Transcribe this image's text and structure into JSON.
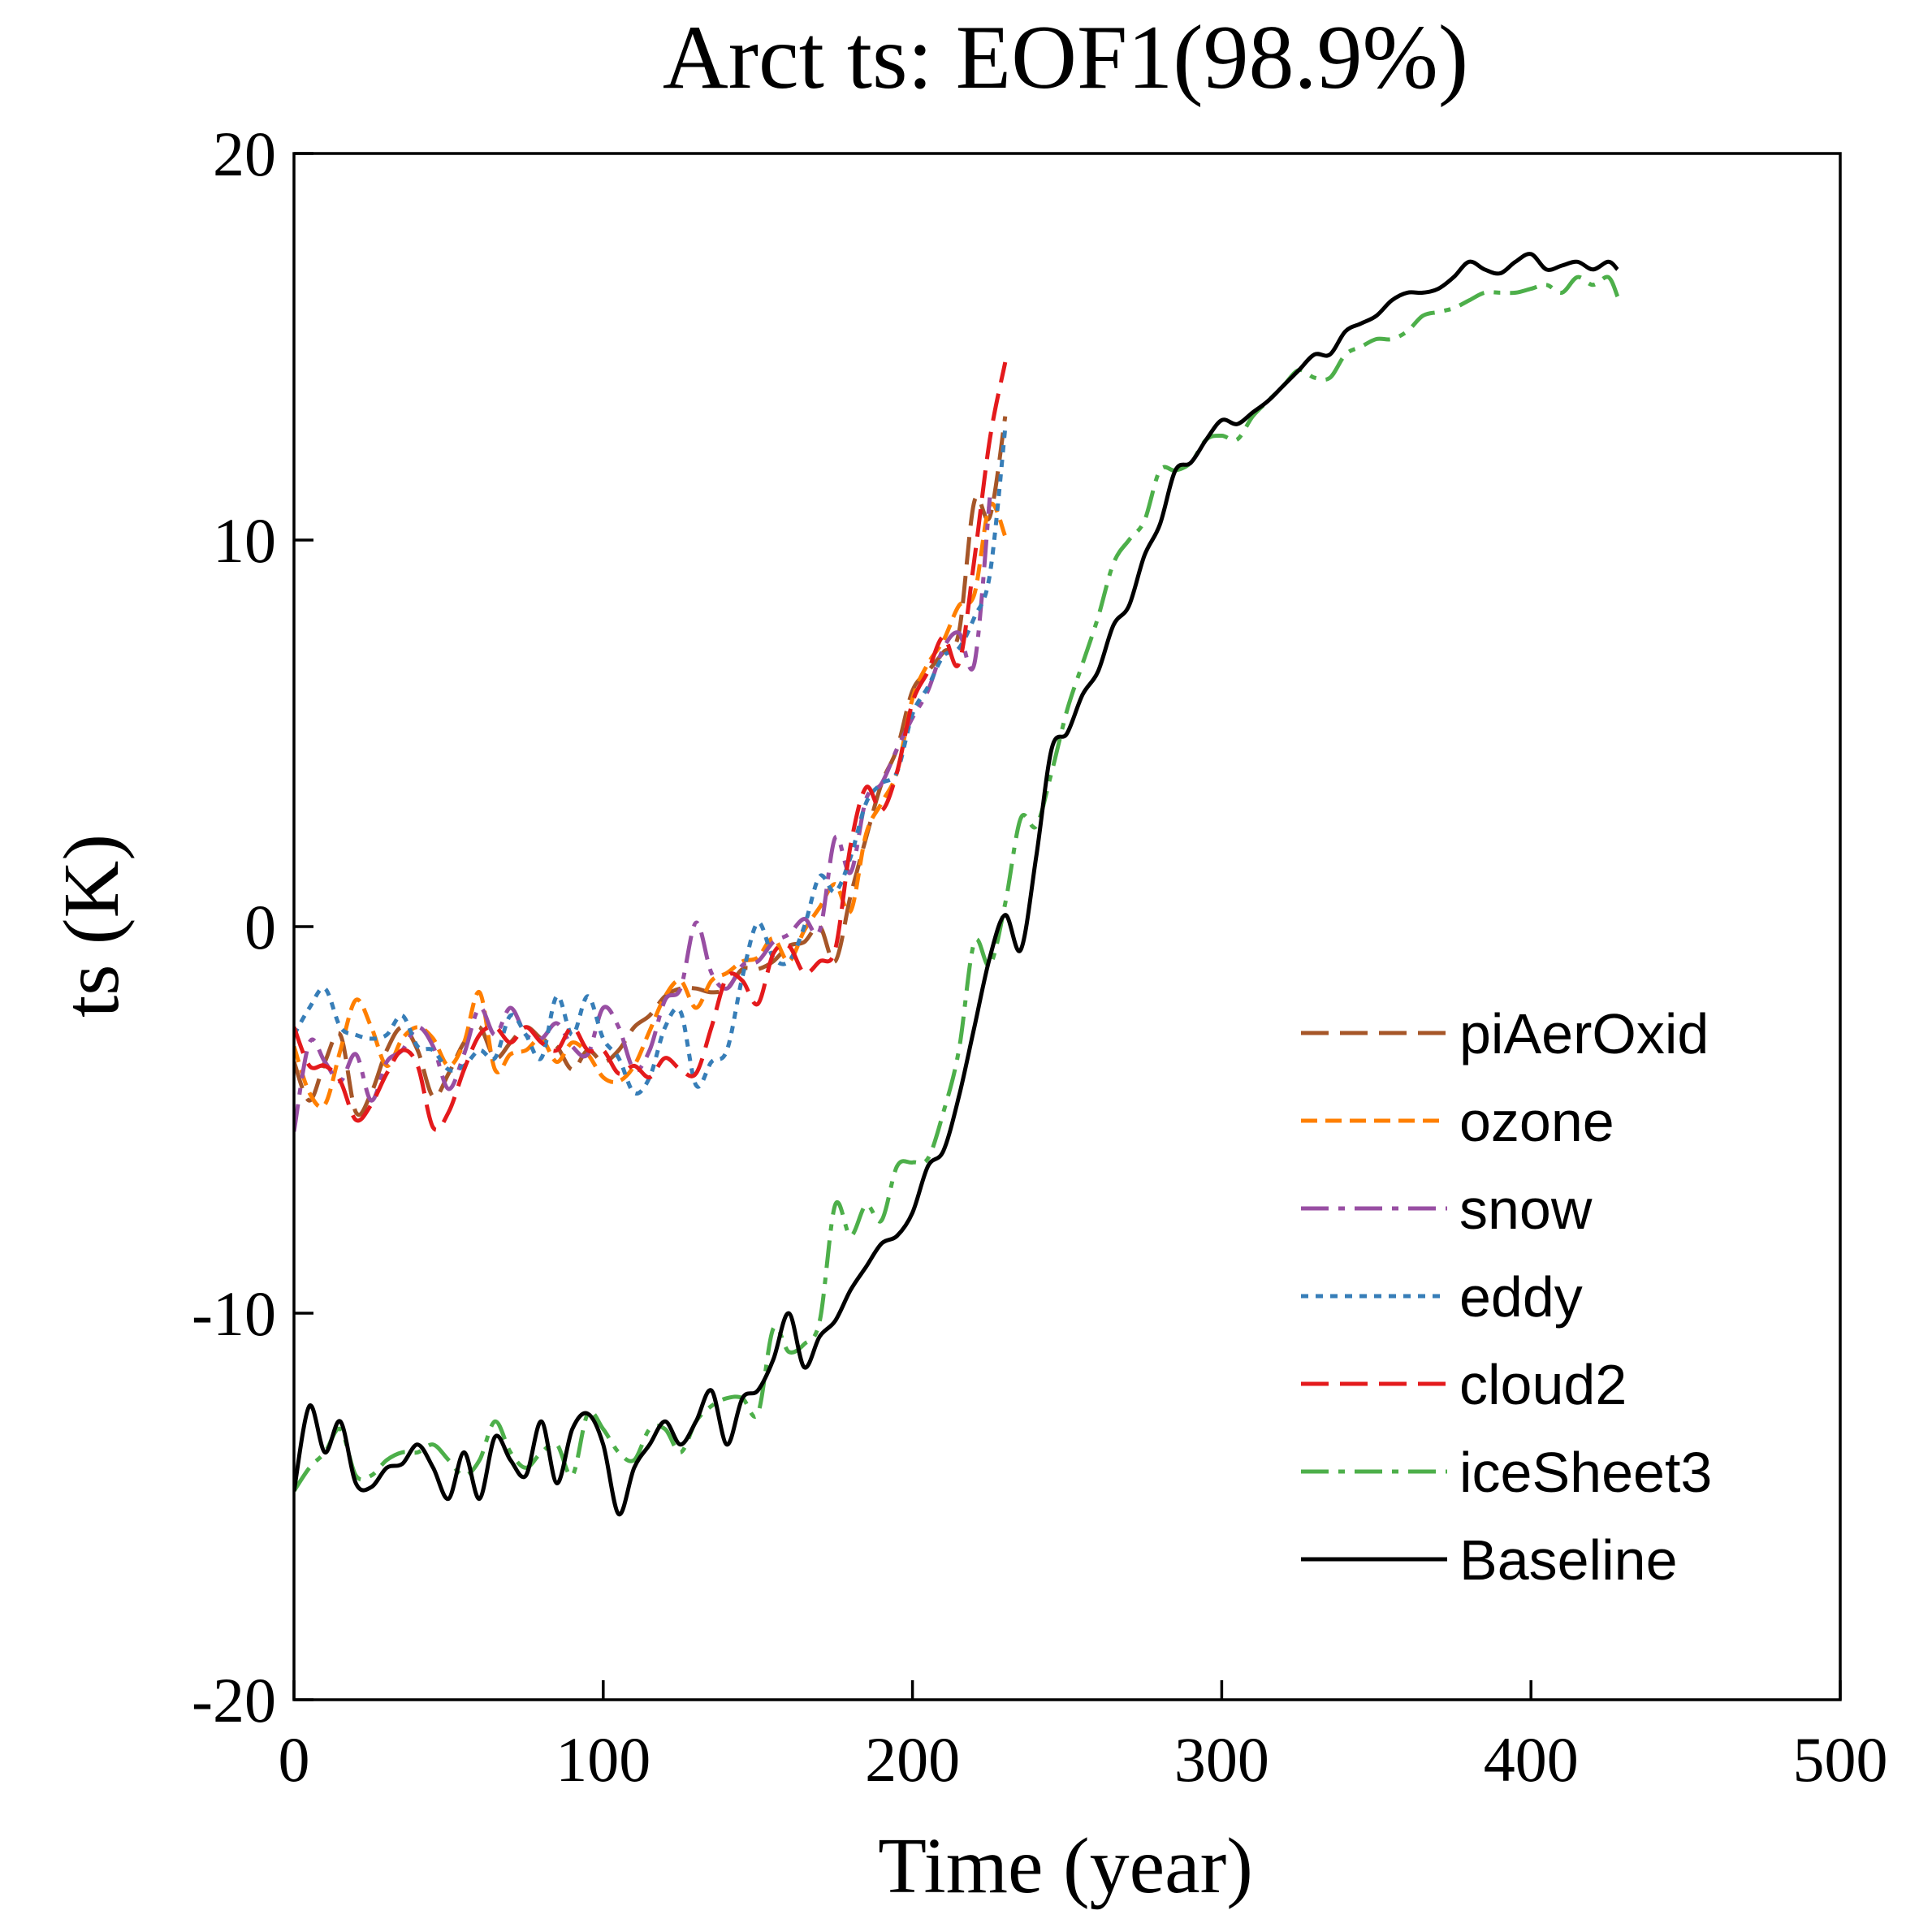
{
  "chart_data": {
    "type": "line",
    "title": "Arct ts: EOF1(98.9%)",
    "xlabel": "Time (year)",
    "ylabel": "ts (K)",
    "xlim": [
      0,
      500
    ],
    "ylim": [
      -20,
      20
    ],
    "xticks": [
      0,
      100,
      200,
      300,
      400,
      500
    ],
    "yticks": [
      -20,
      -10,
      0,
      10,
      20
    ],
    "xtick_labels": [
      "0",
      "100",
      "200",
      "300",
      "400",
      "500"
    ],
    "ytick_labels": [
      "-20",
      "-10",
      "0",
      "10",
      "20"
    ],
    "grid": false,
    "legend_position": "lower-right",
    "series": [
      {
        "name": "piAerOxid",
        "color": "#a65628",
        "dash": "long-dash",
        "x": [
          0,
          5,
          10,
          15,
          20,
          25,
          30,
          35,
          40,
          45,
          50,
          55,
          60,
          65,
          70,
          75,
          80,
          85,
          90,
          95,
          100,
          105,
          110,
          115,
          120,
          125,
          130,
          135,
          140,
          145,
          150,
          155,
          160,
          165,
          170,
          175,
          180,
          185,
          190,
          195,
          200,
          205,
          210,
          215,
          220,
          225,
          230
        ],
        "y": [
          -3.5,
          -4.5,
          -3.5,
          -2.8,
          -4.8,
          -4.3,
          -3.2,
          -2.6,
          -3.2,
          -4.4,
          -3.8,
          -3.0,
          -2.6,
          -3.4,
          -3.0,
          -2.6,
          -2.9,
          -3.1,
          -3.7,
          -3.2,
          -3.5,
          -3.2,
          -2.6,
          -2.3,
          -1.8,
          -1.6,
          -1.6,
          -1.7,
          -1.6,
          -1.1,
          -1.1,
          -0.9,
          -0.5,
          -0.4,
          0.0,
          -0.9,
          0.8,
          2.3,
          3.7,
          4.6,
          6.1,
          6.6,
          7.1,
          7.6,
          11.0,
          10.6,
          13.2
        ]
      },
      {
        "name": "ozone",
        "color": "#ff7f00",
        "dash": "short-dash",
        "x": [
          0,
          5,
          10,
          15,
          20,
          25,
          30,
          35,
          40,
          45,
          50,
          55,
          60,
          65,
          70,
          75,
          80,
          85,
          90,
          95,
          100,
          105,
          110,
          115,
          120,
          125,
          130,
          135,
          140,
          145,
          150,
          155,
          160,
          165,
          170,
          175,
          180,
          185,
          190,
          195,
          200,
          205,
          210,
          215,
          220,
          225,
          230
        ],
        "y": [
          -3.1,
          -4.3,
          -4.6,
          -3.2,
          -1.9,
          -2.6,
          -3.6,
          -2.9,
          -2.6,
          -2.9,
          -3.6,
          -3.0,
          -1.7,
          -3.7,
          -3.3,
          -3.2,
          -2.9,
          -3.5,
          -3.0,
          -3.3,
          -3.9,
          -4.0,
          -3.6,
          -2.7,
          -1.8,
          -1.4,
          -2.1,
          -1.4,
          -1.2,
          -0.9,
          -0.8,
          -0.3,
          -0.9,
          -0.1,
          0.5,
          1.1,
          0.4,
          2.4,
          3.2,
          4.0,
          5.9,
          6.8,
          7.4,
          8.3,
          8.6,
          10.9,
          10.1
        ]
      },
      {
        "name": "snow",
        "color": "#984ea3",
        "dash": "dash-dot",
        "x": [
          0,
          5,
          10,
          15,
          20,
          25,
          30,
          35,
          40,
          45,
          50,
          55,
          60,
          65,
          70,
          75,
          80,
          85,
          90,
          95,
          100,
          105,
          110,
          115,
          120,
          125,
          130,
          135,
          140,
          145,
          150,
          155,
          160,
          165,
          170,
          175,
          180,
          185,
          190,
          195,
          200,
          205,
          210,
          215,
          220,
          225
        ],
        "y": [
          -5.3,
          -3.0,
          -3.5,
          -4.0,
          -3.3,
          -4.5,
          -3.5,
          -3.2,
          -2.6,
          -3.1,
          -4.2,
          -3.3,
          -2.1,
          -2.8,
          -2.1,
          -2.8,
          -2.9,
          -2.5,
          -3.1,
          -3.3,
          -2.1,
          -2.6,
          -3.7,
          -3.2,
          -1.9,
          -1.6,
          0.1,
          -1.2,
          -1.6,
          -1.0,
          -0.9,
          -0.4,
          -0.2,
          0.2,
          -0.1,
          2.3,
          1.4,
          3.3,
          3.7,
          4.6,
          5.4,
          6.1,
          7.2,
          7.6,
          6.8,
          11.1
        ]
      },
      {
        "name": "eddy",
        "color": "#377eb8",
        "dash": "dotted",
        "x": [
          0,
          5,
          10,
          15,
          20,
          25,
          30,
          35,
          40,
          45,
          50,
          55,
          60,
          65,
          70,
          75,
          80,
          85,
          90,
          95,
          100,
          105,
          110,
          115,
          120,
          125,
          130,
          135,
          140,
          145,
          150,
          155,
          160,
          165,
          170,
          175,
          180,
          185,
          190,
          195,
          200,
          205,
          210,
          215,
          220,
          225,
          230
        ],
        "y": [
          -2.8,
          -2.1,
          -1.6,
          -2.6,
          -2.8,
          -2.9,
          -2.8,
          -2.3,
          -3.1,
          -3.2,
          -3.7,
          -3.6,
          -3.2,
          -3.4,
          -2.3,
          -2.8,
          -3.4,
          -1.8,
          -2.8,
          -1.8,
          -2.9,
          -3.4,
          -4.3,
          -3.9,
          -2.6,
          -2.2,
          -4.1,
          -3.5,
          -3.2,
          -1.3,
          0.1,
          -0.8,
          -0.9,
          0.0,
          1.3,
          0.9,
          1.8,
          3.2,
          3.7,
          4.0,
          5.5,
          6.2,
          7.0,
          7.2,
          8.0,
          9.1,
          12.9
        ]
      },
      {
        "name": "cloud2",
        "color": "#e41a1c",
        "dash": "long-dash",
        "x": [
          0,
          5,
          10,
          15,
          20,
          25,
          30,
          35,
          40,
          45,
          50,
          55,
          60,
          65,
          70,
          75,
          80,
          85,
          90,
          95,
          100,
          105,
          110,
          115,
          120,
          125,
          130,
          135,
          140,
          145,
          150,
          155,
          160,
          165,
          170,
          175,
          180,
          185,
          190,
          195,
          200,
          205,
          210,
          215,
          220,
          225,
          230
        ],
        "y": [
          -2.6,
          -3.6,
          -3.6,
          -4.0,
          -5.0,
          -4.6,
          -3.8,
          -3.2,
          -3.6,
          -5.2,
          -4.8,
          -3.7,
          -2.8,
          -2.6,
          -3.0,
          -2.6,
          -3.0,
          -3.2,
          -2.6,
          -3.2,
          -3.2,
          -3.8,
          -3.6,
          -3.9,
          -3.4,
          -3.7,
          -3.8,
          -2.6,
          -1.3,
          -1.4,
          -2.0,
          -0.7,
          -0.5,
          -1.2,
          -0.9,
          -0.6,
          2.1,
          3.6,
          3.0,
          4.0,
          5.8,
          6.6,
          7.5,
          6.8,
          9.5,
          12.6,
          14.6
        ]
      },
      {
        "name": "iceSheet3",
        "color": "#4daf4a",
        "dash": "dash-dot",
        "x": [
          0,
          5,
          10,
          15,
          20,
          25,
          30,
          35,
          40,
          45,
          50,
          55,
          60,
          65,
          70,
          75,
          80,
          85,
          90,
          95,
          100,
          105,
          110,
          115,
          120,
          125,
          130,
          135,
          140,
          145,
          150,
          155,
          160,
          165,
          170,
          175,
          180,
          185,
          190,
          195,
          200,
          205,
          210,
          215,
          220,
          225,
          230,
          235,
          240,
          245,
          250,
          255,
          260,
          265,
          270,
          275,
          280,
          285,
          290,
          295,
          300,
          305,
          310,
          315,
          320,
          325,
          330,
          335,
          340,
          345,
          350,
          355,
          360,
          365,
          370,
          375,
          380,
          385,
          390,
          395,
          400,
          405,
          410,
          415,
          420,
          425,
          428
        ],
        "y": [
          -14.6,
          -14.0,
          -13.6,
          -13.0,
          -14.2,
          -14.2,
          -13.8,
          -13.6,
          -13.6,
          -13.4,
          -13.8,
          -14.2,
          -13.8,
          -12.8,
          -13.6,
          -14.0,
          -13.6,
          -13.4,
          -14.2,
          -12.6,
          -13.0,
          -13.6,
          -13.8,
          -13.0,
          -13.0,
          -13.6,
          -12.8,
          -12.4,
          -12.2,
          -12.2,
          -12.6,
          -10.4,
          -11.0,
          -10.8,
          -10.2,
          -7.2,
          -8.0,
          -7.2,
          -7.6,
          -6.2,
          -6.1,
          -6.0,
          -4.8,
          -3.2,
          -0.4,
          -1.0,
          0.6,
          2.8,
          2.6,
          4.0,
          5.6,
          6.8,
          8.0,
          9.4,
          10.0,
          10.5,
          11.8,
          11.8,
          12.0,
          12.6,
          12.7,
          12.6,
          13.2,
          13.6,
          14.0,
          14.4,
          14.2,
          14.2,
          14.8,
          15.0,
          15.2,
          15.2,
          15.4,
          15.8,
          15.9,
          16.0,
          16.2,
          16.4,
          16.4,
          16.4,
          16.5,
          16.6,
          16.4,
          16.8,
          16.6,
          16.8,
          16.3
        ]
      },
      {
        "name": "Baseline",
        "color": "#000000",
        "dash": "solid",
        "x": [
          0,
          5,
          10,
          15,
          20,
          25,
          30,
          35,
          40,
          45,
          50,
          55,
          60,
          65,
          70,
          75,
          80,
          85,
          90,
          95,
          100,
          105,
          110,
          115,
          120,
          125,
          130,
          135,
          140,
          145,
          150,
          155,
          160,
          165,
          170,
          175,
          180,
          185,
          190,
          195,
          200,
          205,
          210,
          215,
          220,
          225,
          230,
          235,
          240,
          245,
          250,
          255,
          260,
          265,
          270,
          275,
          280,
          285,
          290,
          295,
          300,
          305,
          310,
          315,
          320,
          325,
          330,
          335,
          340,
          345,
          350,
          355,
          360,
          365,
          370,
          375,
          380,
          385,
          390,
          395,
          400,
          405,
          410,
          415,
          420,
          425,
          428
        ],
        "y": [
          -14.6,
          -12.4,
          -13.6,
          -12.8,
          -14.4,
          -14.5,
          -14.0,
          -13.9,
          -13.4,
          -14.0,
          -14.8,
          -13.6,
          -14.8,
          -13.2,
          -13.8,
          -14.2,
          -12.8,
          -14.4,
          -13.0,
          -12.6,
          -13.4,
          -15.2,
          -14.0,
          -13.4,
          -12.8,
          -13.4,
          -12.8,
          -12.0,
          -13.4,
          -12.2,
          -12.0,
          -11.2,
          -10.0,
          -11.4,
          -10.6,
          -10.2,
          -9.4,
          -8.8,
          -8.2,
          -8.0,
          -7.4,
          -6.2,
          -5.8,
          -4.4,
          -2.6,
          -0.8,
          0.3,
          -0.6,
          1.8,
          4.6,
          5.0,
          6.0,
          6.6,
          7.8,
          8.3,
          9.6,
          10.4,
          11.8,
          12.0,
          12.6,
          13.1,
          13.0,
          13.3,
          13.6,
          14.0,
          14.4,
          14.8,
          14.8,
          15.4,
          15.6,
          15.8,
          16.2,
          16.4,
          16.4,
          16.5,
          16.8,
          17.2,
          17.0,
          16.9,
          17.2,
          17.4,
          17.0,
          17.1,
          17.2,
          17.0,
          17.2,
          17.0
        ]
      }
    ]
  }
}
